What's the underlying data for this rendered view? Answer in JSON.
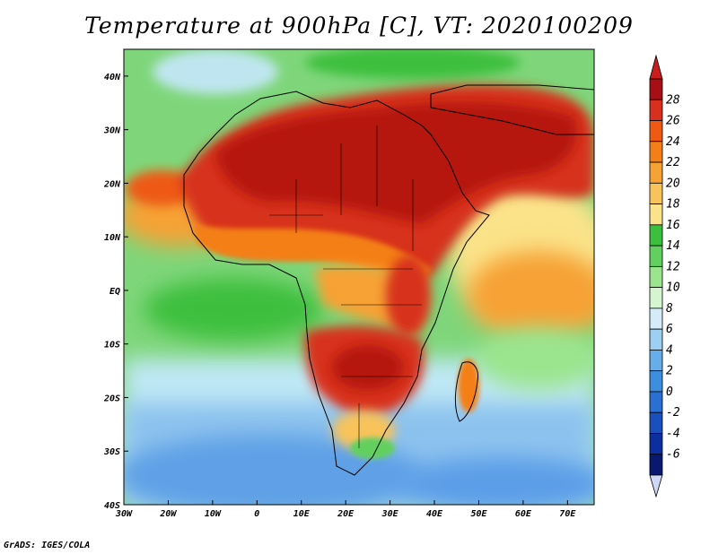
{
  "title": "Temperature at 900hPa [C], VT: 2020100209",
  "credit": "GrADS: IGES/COLA",
  "map": {
    "variable": "Temperature",
    "level": "900hPa",
    "units": "C",
    "valid_time": "2020100209",
    "lon_range": [
      -30,
      76
    ],
    "lat_range": [
      -40,
      45
    ],
    "x_ticks": [
      {
        "value": -30,
        "label": "30W"
      },
      {
        "value": -20,
        "label": "20W"
      },
      {
        "value": -10,
        "label": "10W"
      },
      {
        "value": 0,
        "label": "0"
      },
      {
        "value": 10,
        "label": "10E"
      },
      {
        "value": 20,
        "label": "20E"
      },
      {
        "value": 30,
        "label": "30E"
      },
      {
        "value": 40,
        "label": "40E"
      },
      {
        "value": 50,
        "label": "50E"
      },
      {
        "value": 60,
        "label": "60E"
      },
      {
        "value": 70,
        "label": "70E"
      }
    ],
    "y_ticks": [
      {
        "value": 40,
        "label": "40N"
      },
      {
        "value": 30,
        "label": "30N"
      },
      {
        "value": 20,
        "label": "20N"
      },
      {
        "value": 10,
        "label": "10N"
      },
      {
        "value": 0,
        "label": "EQ"
      },
      {
        "value": -10,
        "label": "10S"
      },
      {
        "value": -20,
        "label": "20S"
      },
      {
        "value": -30,
        "label": "30S"
      },
      {
        "value": -40,
        "label": "40S"
      }
    ]
  },
  "colorbar": {
    "labels": [
      "28",
      "26",
      "24",
      "22",
      "20",
      "18",
      "16",
      "14",
      "12",
      "10",
      "8",
      "6",
      "4",
      "2",
      "0",
      "-2",
      "-4",
      "-6"
    ],
    "colors_top_to_bottom": [
      "#a50f15",
      "#d7301f",
      "#ee5a12",
      "#f47f18",
      "#f6a235",
      "#f8c35a",
      "#fbe38a",
      "#3cbf3c",
      "#62d05e",
      "#9be58e",
      "#d4f5cf",
      "#d5ecf8",
      "#9dcff2",
      "#66aee9",
      "#3e8ee0",
      "#2a6fd2",
      "#1a4fbe",
      "#0d2e9e",
      "#08196e"
    ],
    "over_color": "#c81e1e",
    "under_color": "#cfd8f6"
  }
}
